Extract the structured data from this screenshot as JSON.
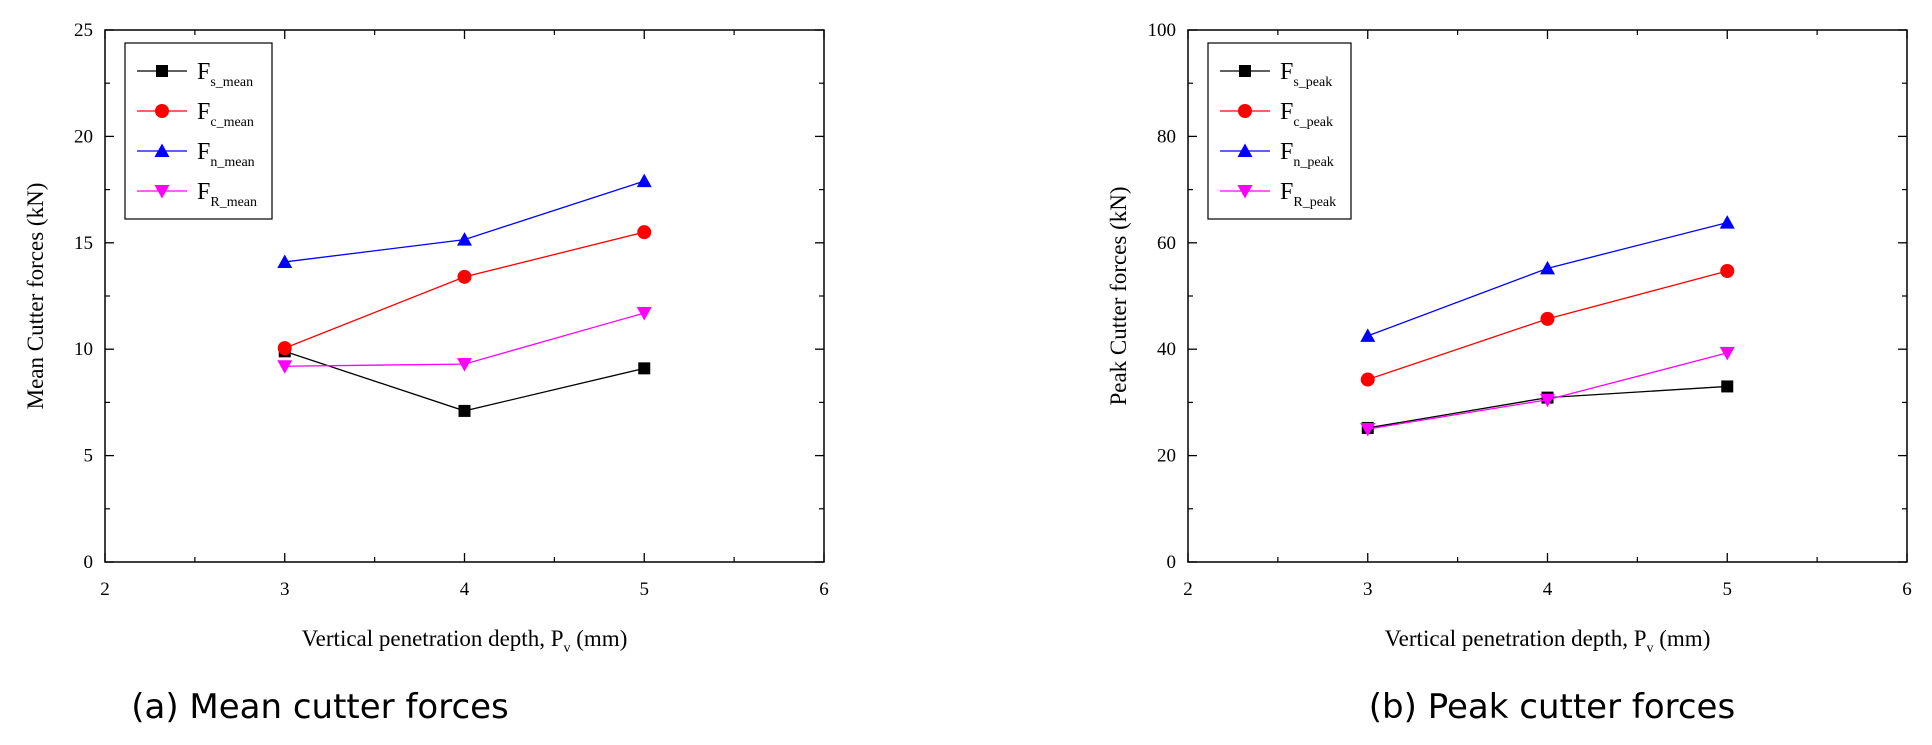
{
  "figure_captions": [
    "(a) Mean cutter forces",
    "(b) Peak cutter forces"
  ],
  "chart_data": [
    {
      "type": "line",
      "title": "",
      "caption": "(a) Mean cutter forces",
      "xlabel": "Vertical penetration depth, P",
      "xlabel_sub": "v",
      "xlabel_suffix": " (mm)",
      "ylabel": "Mean Cutter forces (kN)",
      "xlim": [
        2,
        6
      ],
      "ylim": [
        0,
        25
      ],
      "xticks": [
        2,
        3,
        4,
        5,
        6
      ],
      "yticks": [
        0,
        5,
        10,
        15,
        20,
        25
      ],
      "legend_position": "top-left",
      "x": [
        3,
        4,
        5
      ],
      "series": [
        {
          "name": "F",
          "sub": "s_mean",
          "values": [
            9.9,
            7.1,
            9.1
          ],
          "color": "#000000",
          "marker": "square"
        },
        {
          "name": "F",
          "sub": "c_mean",
          "values": [
            10.05,
            13.4,
            15.5
          ],
          "color": "#ff0000",
          "marker": "circle"
        },
        {
          "name": "F",
          "sub": "n_mean",
          "values": [
            14.1,
            15.15,
            17.9
          ],
          "color": "#0000ff",
          "marker": "triangle-up"
        },
        {
          "name": "F",
          "sub": "R_mean",
          "values": [
            9.2,
            9.3,
            11.7
          ],
          "color": "#ff00ff",
          "marker": "triangle-down"
        }
      ]
    },
    {
      "type": "line",
      "title": "",
      "caption": "(b) Peak cutter forces",
      "xlabel": "Vertical penetration depth, P",
      "xlabel_sub": "v",
      "xlabel_suffix": " (mm)",
      "ylabel": "Peak Cutter forces (kN)",
      "xlim": [
        2,
        6
      ],
      "ylim": [
        0,
        100
      ],
      "xticks": [
        2,
        3,
        4,
        5,
        6
      ],
      "yticks": [
        0,
        20,
        40,
        60,
        80,
        100
      ],
      "legend_position": "top-left",
      "x": [
        3,
        4,
        5
      ],
      "series": [
        {
          "name": "F",
          "sub": "s_peak",
          "values": [
            25.2,
            30.9,
            33.0
          ],
          "color": "#000000",
          "marker": "square"
        },
        {
          "name": "F",
          "sub": "c_peak",
          "values": [
            34.3,
            45.7,
            54.7
          ],
          "color": "#ff0000",
          "marker": "circle"
        },
        {
          "name": "F",
          "sub": "n_peak",
          "values": [
            42.5,
            55.2,
            63.8
          ],
          "color": "#0000ff",
          "marker": "triangle-up"
        },
        {
          "name": "F",
          "sub": "R_peak",
          "values": [
            25.0,
            30.5,
            39.3
          ],
          "color": "#ff00ff",
          "marker": "triangle-down"
        }
      ]
    }
  ]
}
